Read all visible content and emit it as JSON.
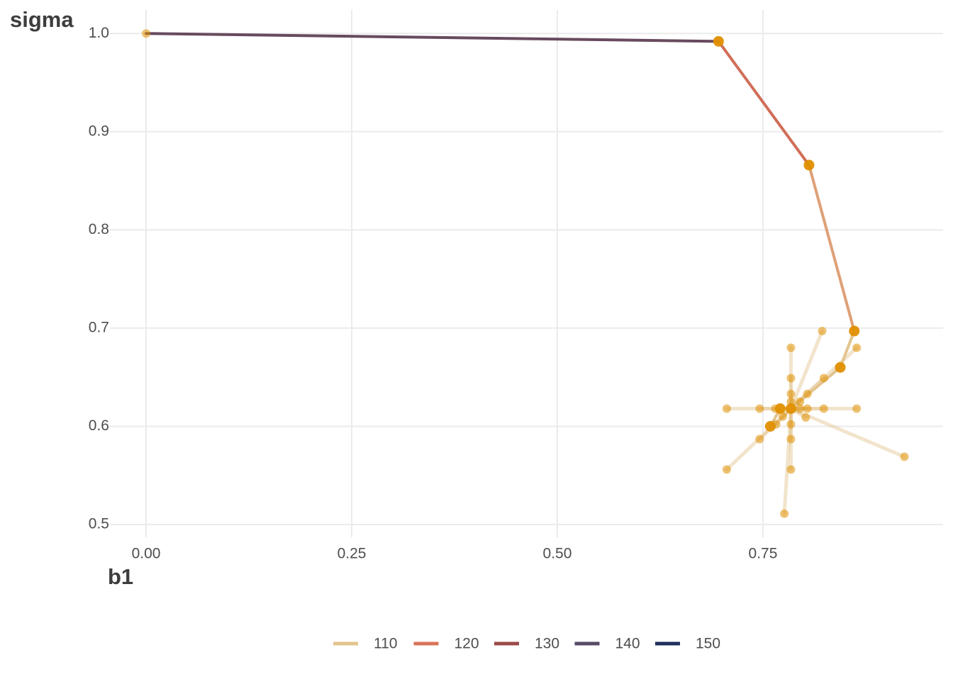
{
  "chart_data": {
    "type": "path",
    "x_label": "b1",
    "y_label": "sigma",
    "xlim": [
      -0.044,
      0.969
    ],
    "ylim": [
      0.487,
      1.024
    ],
    "xticks": [
      {
        "value": 0,
        "label": "0.00"
      },
      {
        "value": 0.25,
        "label": "0.25"
      },
      {
        "value": 0.5,
        "label": "0.50"
      },
      {
        "value": 0.75,
        "label": "0.75"
      }
    ],
    "yticks": [
      0.5,
      0.6,
      0.7,
      0.8,
      0.9,
      {
        "value": 1,
        "label": "1.0"
      }
    ],
    "grid": true,
    "path": {
      "x": [
        0,
        0.696,
        0.806,
        0.861,
        0.844,
        0.784,
        0.771,
        0.759
      ],
      "y": [
        1.0,
        0.992,
        0.866,
        0.697,
        0.66,
        0.618,
        0.618,
        0.6
      ],
      "loss": [
        150,
        125,
        118,
        111,
        109,
        108,
        108,
        108
      ]
    },
    "trials": {
      "x": [
        0.822,
        0.784,
        0.784,
        0.824,
        0.864,
        0.804,
        0.784,
        0.795,
        0.784,
        0.706,
        0.746,
        0.765,
        0.804,
        0.824,
        0.864,
        0.795,
        0.774,
        0.802,
        0.784,
        0.766,
        0.746,
        0.784,
        0.706,
        0.784,
        0.922,
        0.776
      ],
      "y": [
        0.697,
        0.68,
        0.649,
        0.649,
        0.68,
        0.633,
        0.633,
        0.625,
        0.625,
        0.618,
        0.618,
        0.618,
        0.618,
        0.618,
        0.618,
        0.618,
        0.61,
        0.609,
        0.602,
        0.602,
        0.587,
        0.587,
        0.556,
        0.556,
        0.569,
        0.511
      ]
    },
    "legend": {
      "values": [
        110,
        120,
        130,
        140,
        150
      ],
      "colors": [
        "#e3c48f",
        "#d9745a",
        "#9b4a4a",
        "#574a65",
        "#1e2f5c"
      ]
    },
    "point_color": "#e08f00"
  }
}
